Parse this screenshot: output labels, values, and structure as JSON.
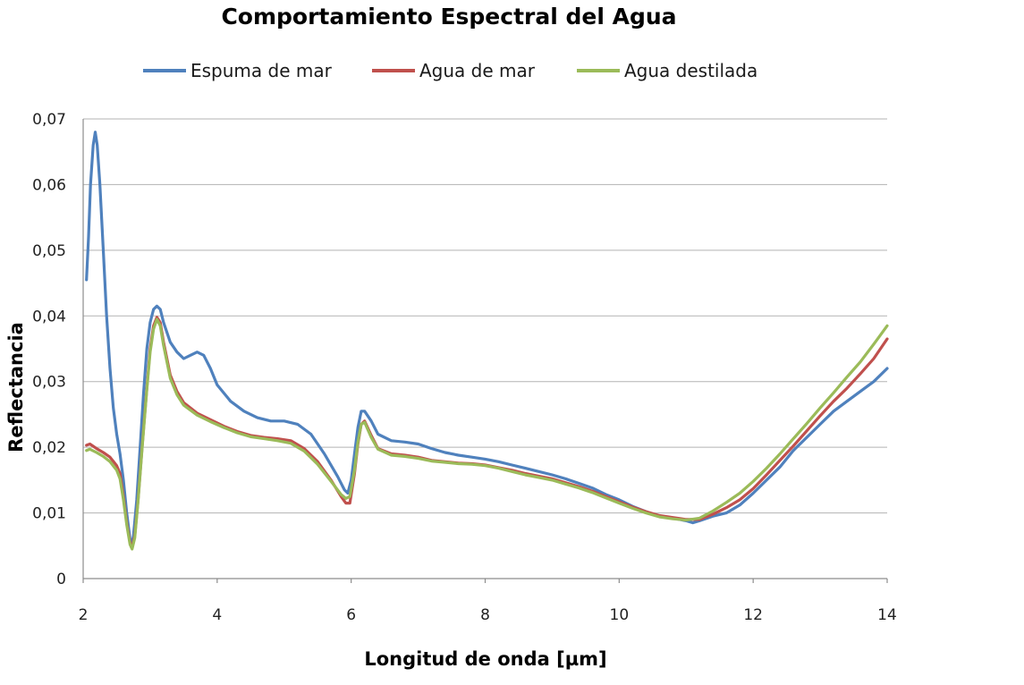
{
  "chart_data": {
    "type": "line",
    "title": "Comportamiento Espectral del Agua",
    "xlabel": "Longitud de onda [µm]",
    "ylabel": "Reflectancia",
    "xlim": [
      2,
      14
    ],
    "ylim": [
      0,
      0.07
    ],
    "x_ticks": [
      2,
      4,
      6,
      8,
      10,
      12,
      14
    ],
    "x_tick_labels": [
      "2",
      "4",
      "6",
      "8",
      "10",
      "12",
      "14"
    ],
    "y_ticks": [
      0,
      0.01,
      0.02,
      0.03,
      0.04,
      0.05,
      0.06,
      0.07
    ],
    "y_tick_labels": [
      "0",
      "0,01",
      "0,02",
      "0,03",
      "0,04",
      "0,05",
      "0,06",
      "0,07"
    ],
    "grid": "horizontal",
    "legend_position": "top",
    "series": [
      {
        "name": "Espuma de mar",
        "color": "#4f81bd",
        "points": [
          [
            2.05,
            0.0455
          ],
          [
            2.08,
            0.052
          ],
          [
            2.11,
            0.06
          ],
          [
            2.15,
            0.066
          ],
          [
            2.18,
            0.068
          ],
          [
            2.21,
            0.066
          ],
          [
            2.25,
            0.06
          ],
          [
            2.3,
            0.05
          ],
          [
            2.35,
            0.04
          ],
          [
            2.4,
            0.032
          ],
          [
            2.45,
            0.026
          ],
          [
            2.5,
            0.022
          ],
          [
            2.55,
            0.019
          ],
          [
            2.6,
            0.015
          ],
          [
            2.65,
            0.01
          ],
          [
            2.7,
            0.006
          ],
          [
            2.72,
            0.0048
          ],
          [
            2.75,
            0.0065
          ],
          [
            2.8,
            0.012
          ],
          [
            2.85,
            0.02
          ],
          [
            2.9,
            0.028
          ],
          [
            2.95,
            0.035
          ],
          [
            3.0,
            0.039
          ],
          [
            3.05,
            0.041
          ],
          [
            3.1,
            0.0415
          ],
          [
            3.15,
            0.041
          ],
          [
            3.2,
            0.039
          ],
          [
            3.3,
            0.036
          ],
          [
            3.4,
            0.0345
          ],
          [
            3.5,
            0.0335
          ],
          [
            3.6,
            0.034
          ],
          [
            3.7,
            0.0345
          ],
          [
            3.8,
            0.034
          ],
          [
            3.9,
            0.032
          ],
          [
            4.0,
            0.0295
          ],
          [
            4.2,
            0.027
          ],
          [
            4.4,
            0.0255
          ],
          [
            4.6,
            0.0245
          ],
          [
            4.8,
            0.024
          ],
          [
            5.0,
            0.024
          ],
          [
            5.2,
            0.0235
          ],
          [
            5.4,
            0.022
          ],
          [
            5.6,
            0.019
          ],
          [
            5.8,
            0.0155
          ],
          [
            5.9,
            0.0135
          ],
          [
            5.95,
            0.013
          ],
          [
            6.0,
            0.015
          ],
          [
            6.05,
            0.019
          ],
          [
            6.1,
            0.023
          ],
          [
            6.15,
            0.0255
          ],
          [
            6.2,
            0.0255
          ],
          [
            6.3,
            0.024
          ],
          [
            6.4,
            0.022
          ],
          [
            6.6,
            0.021
          ],
          [
            6.8,
            0.0208
          ],
          [
            7.0,
            0.0205
          ],
          [
            7.2,
            0.0198
          ],
          [
            7.4,
            0.0192
          ],
          [
            7.6,
            0.0188
          ],
          [
            7.8,
            0.0185
          ],
          [
            8.0,
            0.0182
          ],
          [
            8.2,
            0.0178
          ],
          [
            8.4,
            0.0173
          ],
          [
            8.6,
            0.0168
          ],
          [
            8.8,
            0.0163
          ],
          [
            9.0,
            0.0158
          ],
          [
            9.2,
            0.0152
          ],
          [
            9.4,
            0.0145
          ],
          [
            9.6,
            0.0138
          ],
          [
            9.8,
            0.0128
          ],
          [
            10.0,
            0.012
          ],
          [
            10.2,
            0.011
          ],
          [
            10.4,
            0.0102
          ],
          [
            10.6,
            0.0095
          ],
          [
            10.8,
            0.0092
          ],
          [
            11.0,
            0.0088
          ],
          [
            11.1,
            0.0085
          ],
          [
            11.2,
            0.0088
          ],
          [
            11.4,
            0.0095
          ],
          [
            11.6,
            0.01
          ],
          [
            11.8,
            0.0112
          ],
          [
            12.0,
            0.013
          ],
          [
            12.2,
            0.015
          ],
          [
            12.4,
            0.017
          ],
          [
            12.6,
            0.0195
          ],
          [
            12.8,
            0.0215
          ],
          [
            13.0,
            0.0235
          ],
          [
            13.2,
            0.0255
          ],
          [
            13.4,
            0.027
          ],
          [
            13.6,
            0.0285
          ],
          [
            13.8,
            0.03
          ],
          [
            14.0,
            0.032
          ]
        ]
      },
      {
        "name": "Agua de mar",
        "color": "#c0504d",
        "points": [
          [
            2.05,
            0.0203
          ],
          [
            2.1,
            0.0205
          ],
          [
            2.2,
            0.0198
          ],
          [
            2.3,
            0.0192
          ],
          [
            2.4,
            0.0185
          ],
          [
            2.5,
            0.0172
          ],
          [
            2.55,
            0.016
          ],
          [
            2.6,
            0.0125
          ],
          [
            2.65,
            0.0085
          ],
          [
            2.7,
            0.0055
          ],
          [
            2.73,
            0.0048
          ],
          [
            2.77,
            0.0065
          ],
          [
            2.82,
            0.012
          ],
          [
            2.88,
            0.02
          ],
          [
            2.95,
            0.029
          ],
          [
            3.0,
            0.035
          ],
          [
            3.05,
            0.0385
          ],
          [
            3.1,
            0.0398
          ],
          [
            3.15,
            0.039
          ],
          [
            3.2,
            0.036
          ],
          [
            3.3,
            0.031
          ],
          [
            3.4,
            0.0285
          ],
          [
            3.5,
            0.0268
          ],
          [
            3.7,
            0.0252
          ],
          [
            3.9,
            0.0242
          ],
          [
            4.1,
            0.0232
          ],
          [
            4.3,
            0.0224
          ],
          [
            4.5,
            0.0218
          ],
          [
            4.7,
            0.0215
          ],
          [
            4.9,
            0.0213
          ],
          [
            5.1,
            0.021
          ],
          [
            5.3,
            0.0198
          ],
          [
            5.5,
            0.0178
          ],
          [
            5.7,
            0.015
          ],
          [
            5.85,
            0.0125
          ],
          [
            5.92,
            0.0115
          ],
          [
            5.98,
            0.0115
          ],
          [
            6.05,
            0.016
          ],
          [
            6.1,
            0.0205
          ],
          [
            6.15,
            0.0235
          ],
          [
            6.2,
            0.024
          ],
          [
            6.3,
            0.0218
          ],
          [
            6.4,
            0.0198
          ],
          [
            6.6,
            0.019
          ],
          [
            6.8,
            0.0188
          ],
          [
            7.0,
            0.0185
          ],
          [
            7.2,
            0.018
          ],
          [
            7.4,
            0.0178
          ],
          [
            7.6,
            0.0176
          ],
          [
            7.8,
            0.0175
          ],
          [
            8.0,
            0.0173
          ],
          [
            8.2,
            0.0169
          ],
          [
            8.4,
            0.0165
          ],
          [
            8.6,
            0.016
          ],
          [
            8.8,
            0.0156
          ],
          [
            9.0,
            0.0152
          ],
          [
            9.2,
            0.0146
          ],
          [
            9.4,
            0.014
          ],
          [
            9.6,
            0.0133
          ],
          [
            9.8,
            0.0125
          ],
          [
            10.0,
            0.0117
          ],
          [
            10.2,
            0.0109
          ],
          [
            10.4,
            0.0102
          ],
          [
            10.6,
            0.0096
          ],
          [
            10.8,
            0.0093
          ],
          [
            11.0,
            0.009
          ],
          [
            11.2,
            0.009
          ],
          [
            11.4,
            0.0098
          ],
          [
            11.6,
            0.0108
          ],
          [
            11.8,
            0.012
          ],
          [
            12.0,
            0.0137
          ],
          [
            12.2,
            0.0158
          ],
          [
            12.4,
            0.018
          ],
          [
            12.6,
            0.0202
          ],
          [
            12.8,
            0.0225
          ],
          [
            13.0,
            0.0248
          ],
          [
            13.2,
            0.027
          ],
          [
            13.4,
            0.029
          ],
          [
            13.6,
            0.0312
          ],
          [
            13.8,
            0.0335
          ],
          [
            14.0,
            0.0365
          ]
        ]
      },
      {
        "name": "Agua destilada",
        "color": "#9bbb59",
        "points": [
          [
            2.05,
            0.0195
          ],
          [
            2.1,
            0.0197
          ],
          [
            2.2,
            0.0192
          ],
          [
            2.3,
            0.0186
          ],
          [
            2.4,
            0.0178
          ],
          [
            2.5,
            0.0165
          ],
          [
            2.55,
            0.0152
          ],
          [
            2.6,
            0.012
          ],
          [
            2.65,
            0.0082
          ],
          [
            2.7,
            0.0052
          ],
          [
            2.73,
            0.0045
          ],
          [
            2.77,
            0.0062
          ],
          [
            2.82,
            0.0118
          ],
          [
            2.88,
            0.0198
          ],
          [
            2.95,
            0.0288
          ],
          [
            3.0,
            0.0345
          ],
          [
            3.05,
            0.038
          ],
          [
            3.1,
            0.0395
          ],
          [
            3.15,
            0.0385
          ],
          [
            3.2,
            0.0355
          ],
          [
            3.3,
            0.0305
          ],
          [
            3.4,
            0.028
          ],
          [
            3.5,
            0.0264
          ],
          [
            3.7,
            0.0249
          ],
          [
            3.9,
            0.0239
          ],
          [
            4.1,
            0.023
          ],
          [
            4.3,
            0.0222
          ],
          [
            4.5,
            0.0216
          ],
          [
            4.7,
            0.0213
          ],
          [
            4.9,
            0.021
          ],
          [
            5.1,
            0.0206
          ],
          [
            5.3,
            0.0194
          ],
          [
            5.5,
            0.0174
          ],
          [
            5.7,
            0.0148
          ],
          [
            5.85,
            0.0128
          ],
          [
            5.92,
            0.0122
          ],
          [
            5.98,
            0.0125
          ],
          [
            6.05,
            0.0165
          ],
          [
            6.1,
            0.0208
          ],
          [
            6.15,
            0.0235
          ],
          [
            6.2,
            0.0238
          ],
          [
            6.3,
            0.0215
          ],
          [
            6.4,
            0.0197
          ],
          [
            6.6,
            0.0188
          ],
          [
            6.8,
            0.0186
          ],
          [
            7.0,
            0.0183
          ],
          [
            7.2,
            0.0179
          ],
          [
            7.4,
            0.0177
          ],
          [
            7.6,
            0.0175
          ],
          [
            7.8,
            0.0174
          ],
          [
            8.0,
            0.0172
          ],
          [
            8.2,
            0.0168
          ],
          [
            8.4,
            0.0163
          ],
          [
            8.6,
            0.0158
          ],
          [
            8.8,
            0.0154
          ],
          [
            9.0,
            0.015
          ],
          [
            9.2,
            0.0144
          ],
          [
            9.4,
            0.0138
          ],
          [
            9.6,
            0.0131
          ],
          [
            9.8,
            0.0123
          ],
          [
            10.0,
            0.0115
          ],
          [
            10.2,
            0.0107
          ],
          [
            10.4,
            0.01
          ],
          [
            10.6,
            0.0094
          ],
          [
            10.8,
            0.0091
          ],
          [
            11.0,
            0.0089
          ],
          [
            11.2,
            0.0092
          ],
          [
            11.4,
            0.0103
          ],
          [
            11.6,
            0.0116
          ],
          [
            11.8,
            0.013
          ],
          [
            12.0,
            0.0148
          ],
          [
            12.2,
            0.0168
          ],
          [
            12.4,
            0.019
          ],
          [
            12.6,
            0.0213
          ],
          [
            12.8,
            0.0236
          ],
          [
            13.0,
            0.026
          ],
          [
            13.2,
            0.0283
          ],
          [
            13.4,
            0.0307
          ],
          [
            13.6,
            0.033
          ],
          [
            13.8,
            0.0357
          ],
          [
            14.0,
            0.0385
          ]
        ]
      }
    ]
  }
}
